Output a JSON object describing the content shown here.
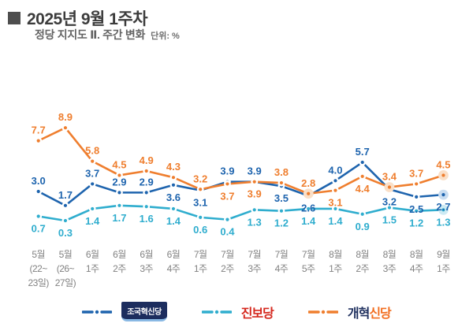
{
  "header": {
    "title": "2025년 9월 1주차",
    "subtitle": "정당 지지도  Ⅱ. 주간 변화",
    "unit": "단위: %"
  },
  "chart_data": {
    "type": "line",
    "title": "정당 지지도 Ⅱ. 주간 변화",
    "unit": "%",
    "ylim": [
      0,
      9.5
    ],
    "grid": false,
    "legend_position": "bottom",
    "categories": [
      [
        "5월",
        "(22~",
        "23일)"
      ],
      [
        "5월",
        "(26~",
        "27일)"
      ],
      [
        "6월",
        "1주"
      ],
      [
        "6월",
        "2주"
      ],
      [
        "6월",
        "3주"
      ],
      [
        "6월",
        "4주"
      ],
      [
        "7월",
        "1주"
      ],
      [
        "7월",
        "2주"
      ],
      [
        "7월",
        "3주"
      ],
      [
        "7월",
        "4주"
      ],
      [
        "7월",
        "5주"
      ],
      [
        "8월",
        "1주"
      ],
      [
        "8월",
        "2주"
      ],
      [
        "8월",
        "3주"
      ],
      [
        "8월",
        "4주"
      ],
      [
        "9월",
        "1주"
      ]
    ],
    "series": [
      {
        "name": "조국혁신당",
        "color": "#1e64ae",
        "halo_color": "#c9ddf1",
        "values": [
          3.0,
          1.7,
          3.7,
          2.9,
          2.9,
          3.6,
          3.1,
          3.9,
          3.9,
          3.5,
          2.6,
          4.0,
          5.7,
          3.2,
          2.5,
          2.7
        ],
        "label_pos": [
          "a",
          "a",
          "a",
          "a",
          "a",
          "b",
          "b",
          "a",
          "a",
          "b",
          "b",
          "a",
          "a",
          "b",
          "b",
          "b"
        ],
        "halo": [
          15
        ]
      },
      {
        "name": "진보당",
        "color": "#2fadce",
        "halo_color": "#cdeaf3",
        "values": [
          0.7,
          0.3,
          1.4,
          1.7,
          1.6,
          1.4,
          0.6,
          0.4,
          1.3,
          1.2,
          1.4,
          1.4,
          0.9,
          1.5,
          1.2,
          1.3
        ],
        "label_pos": [
          "b",
          "b",
          "b",
          "b",
          "b",
          "b",
          "b",
          "b",
          "b",
          "b",
          "b",
          "b",
          "b",
          "b",
          "b",
          "b"
        ],
        "halo": [
          15
        ]
      },
      {
        "name": "개혁신당",
        "color": "#ef7e2e",
        "halo_color": "#fadfc7",
        "values": [
          7.7,
          8.9,
          5.8,
          4.5,
          4.9,
          4.3,
          3.2,
          3.7,
          3.9,
          3.8,
          2.8,
          3.1,
          4.4,
          3.4,
          3.7,
          4.5
        ],
        "label_pos": [
          "a",
          "a",
          "a",
          "a",
          "a",
          "a",
          "a",
          "b",
          "b",
          "a",
          "a",
          "b",
          "b",
          "a",
          "a",
          "a"
        ],
        "halo": [
          10,
          13,
          15
        ]
      }
    ]
  },
  "legend": {
    "items": [
      {
        "label": "조국혁신당"
      },
      {
        "label": "진보당"
      },
      {
        "label": "개혁",
        "label2": "신당"
      }
    ]
  }
}
